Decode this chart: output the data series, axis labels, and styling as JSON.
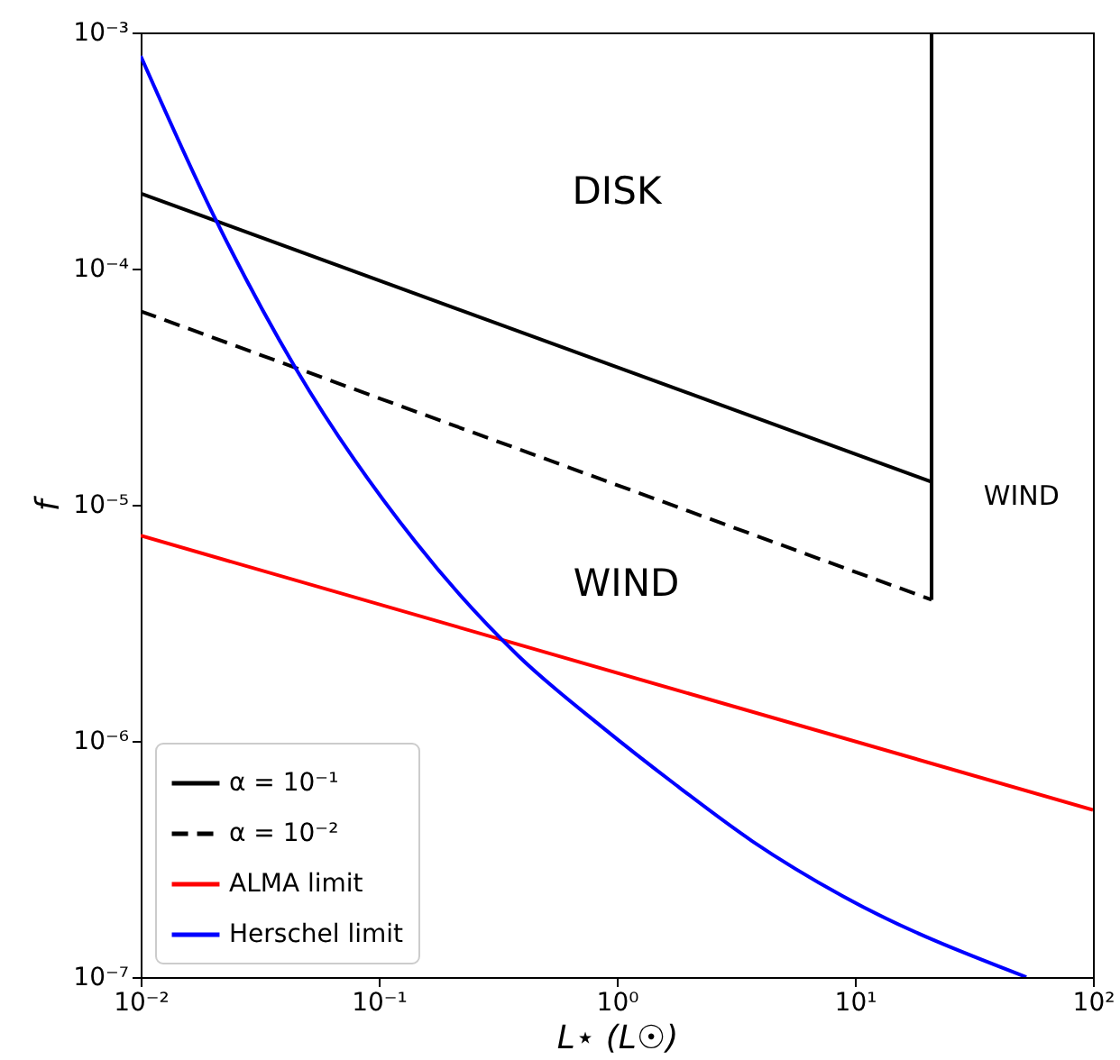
{
  "chart_data": {
    "type": "line",
    "xlabel": "L⋆ (L☉)",
    "ylabel": "f",
    "log": "xy",
    "grid": false,
    "legend": "bottom left",
    "xlim": [
      0.01,
      100
    ],
    "ylim": [
      1e-07,
      0.001
    ],
    "xticks": [
      {
        "value": 0.01,
        "label": "10⁻²"
      },
      {
        "value": 0.1,
        "label": "10⁻¹"
      },
      {
        "value": 1,
        "label": "10⁰"
      },
      {
        "value": 10,
        "label": "10¹"
      },
      {
        "value": 100,
        "label": "10²"
      }
    ],
    "yticks": [
      {
        "value": 1e-07,
        "label": "10⁻⁷"
      },
      {
        "value": 1e-06,
        "label": "10⁻⁶"
      },
      {
        "value": 1e-05,
        "label": "10⁻⁵"
      },
      {
        "value": 0.0001,
        "label": "10⁻⁴"
      },
      {
        "value": 0.001,
        "label": "10⁻³"
      }
    ],
    "series": [
      {
        "name": "α = 10⁻¹",
        "color": "#000000",
        "line_style": "solid",
        "x": [
          0.01,
          21
        ],
        "values": [
          0.000208,
          1.25e-05
        ]
      },
      {
        "name": "α = 10⁻²",
        "color": "#000000",
        "line_style": "dashed",
        "x": [
          0.01,
          21
        ],
        "values": [
          6.6e-05,
          3.96e-06
        ]
      },
      {
        "name": "ALMA limit",
        "color": "#ff0000",
        "line_style": "solid",
        "x": [
          0.01,
          100
        ],
        "values": [
          7.4e-06,
          5.1e-07
        ]
      },
      {
        "name": "Herschel limit",
        "color": "#0000ff",
        "line_style": "solid",
        "x": [
          0.01,
          0.0208,
          0.0448,
          0.142,
          0.386,
          0.863,
          1.74,
          3.71,
          8.9,
          52.5
        ],
        "values": [
          0.000796,
          0.000159,
          3.78e-05,
          7e-06,
          2.29e-06,
          1.15e-06,
          6.6e-07,
          3.76e-07,
          2.2e-07,
          1e-07
        ]
      },
      {
        "color": "#000000",
        "line_style": "solid",
        "x": [
          21,
          21
        ],
        "values": [
          3.96e-06,
          0.001
        ]
      }
    ],
    "annotations": [
      "DISK",
      "WIND",
      "WIND"
    ]
  }
}
